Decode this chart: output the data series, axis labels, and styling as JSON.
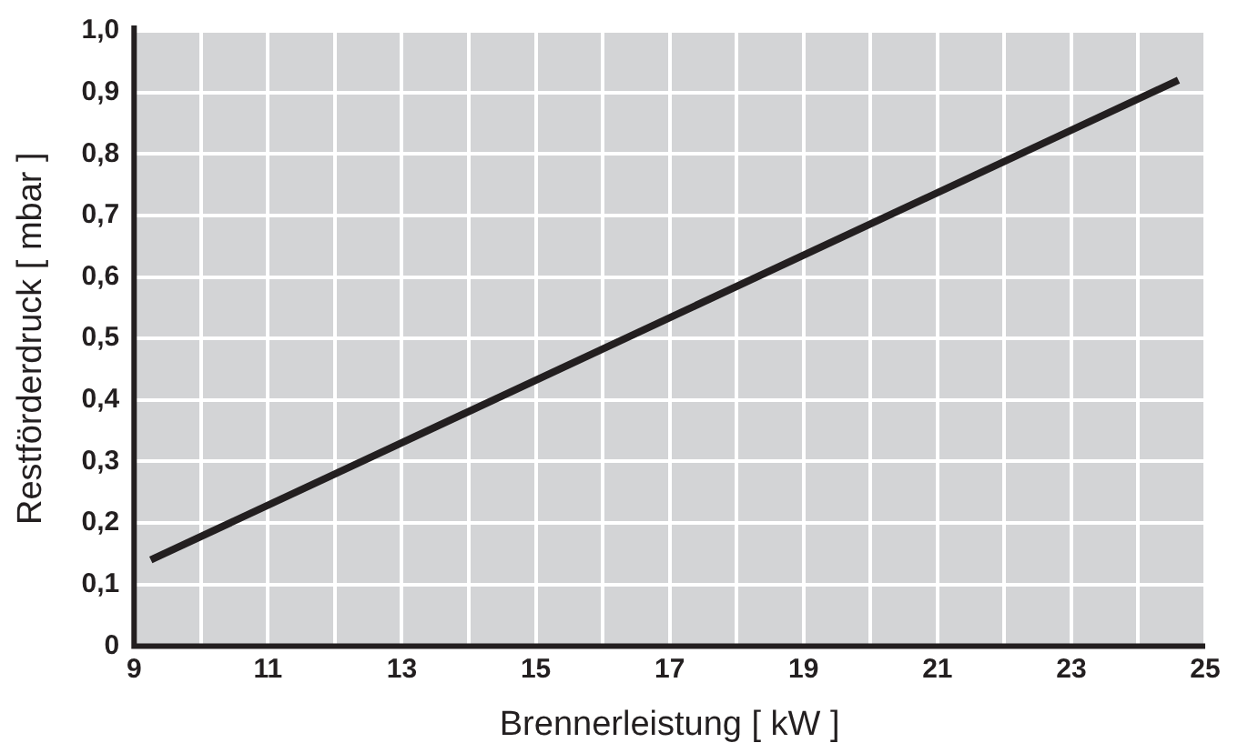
{
  "chart_data": {
    "type": "line",
    "xlabel": "Brennerleistung [ kW ]",
    "ylabel": "Restförderdruck [ mbar ]",
    "series": [
      {
        "color": "#231f20",
        "x": [
          9.25,
          24.6
        ],
        "values": [
          0.14,
          0.92
        ]
      }
    ],
    "xlim": [
      9,
      25
    ],
    "xticks": [
      9,
      {
        "value": 10,
        "label": null
      },
      11,
      {
        "value": 12,
        "label": null
      },
      13,
      {
        "value": 14,
        "label": null
      },
      15,
      {
        "value": 16,
        "label": null
      },
      17,
      {
        "value": 18,
        "label": null
      },
      19,
      {
        "value": 20,
        "label": null
      },
      21,
      {
        "value": 22,
        "label": null
      },
      23,
      {
        "value": 24,
        "label": null
      },
      25
    ],
    "ylim": [
      0,
      1
    ],
    "yticks": [
      0,
      {
        "value": 0.1,
        "label": "0,1"
      },
      {
        "value": 0.2,
        "label": "0,2"
      },
      {
        "value": 0.3,
        "label": "0,3"
      },
      {
        "value": 0.4,
        "label": "0,4"
      },
      {
        "value": 0.5,
        "label": "0,5"
      },
      {
        "value": 0.6,
        "label": "0,6"
      },
      {
        "value": 0.7,
        "label": "0,7"
      },
      {
        "value": 0.8,
        "label": "0,8"
      },
      {
        "value": 0.9,
        "label": "0,9"
      },
      {
        "value": 1,
        "label": "1,0"
      }
    ],
    "grid": true,
    "legend": false,
    "marker": "none",
    "line_style": "solid"
  }
}
